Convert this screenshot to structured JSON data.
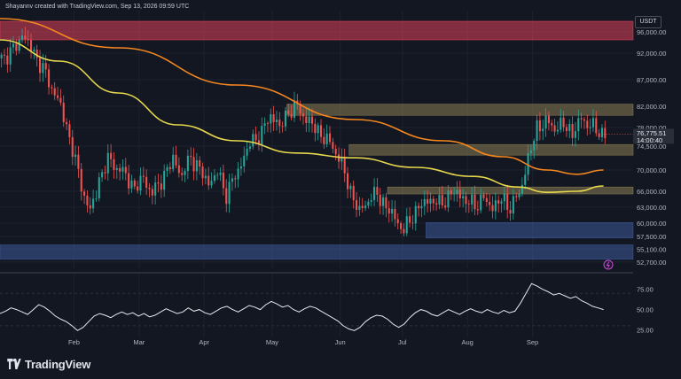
{
  "header": {
    "attribution": "Shayannv created with TradingView.com, Sep 13, 2026 09:59 UTC"
  },
  "currency_label": "USDT",
  "brand": {
    "name": "TradingView"
  },
  "colors": {
    "background": "#131722",
    "candle_up": "#26a69a",
    "candle_down": "#ef5350",
    "ma_slow": "#f5871f",
    "ma_fast": "#e6d74d",
    "rsi_line": "#e8e9ed",
    "resistance_zone": "#e0415a",
    "supply_zone": "#8a7b52",
    "demand_zone": "#3d5a99"
  },
  "price_label": {
    "price": "76,775.51",
    "countdown": "14:00:40"
  },
  "chart_data": [
    {
      "type": "candlestick",
      "title": "",
      "ylim": [
        51500,
        100000
      ],
      "yticks": [
        96000,
        92000,
        87000,
        82000,
        78000,
        74500,
        70000,
        66000,
        63000,
        60000,
        57500,
        55100,
        52700
      ],
      "ytick_labels": [
        "96,000.00",
        "92,000.00",
        "87,000.00",
        "82,000.00",
        "78,000.00",
        "74,500.00",
        "70,000.00",
        "66,000.00",
        "63,000.00",
        "60,000.00",
        "57,500.00",
        "55,100.00",
        "52,700.00"
      ],
      "x_labels": [
        "Feb",
        "Mar",
        "Apr",
        "May",
        "Jun",
        "Jul",
        "Aug",
        "Sep"
      ],
      "close_path": [
        [
          0,
          91000
        ],
        [
          4,
          92500
        ],
        [
          7,
          95500
        ],
        [
          10,
          93000
        ],
        [
          14,
          89000
        ],
        [
          17,
          85500
        ],
        [
          20,
          82000
        ],
        [
          24,
          74000
        ],
        [
          27,
          67000
        ],
        [
          30,
          62000
        ],
        [
          33,
          68000
        ],
        [
          36,
          72000
        ],
        [
          39,
          70500
        ],
        [
          42,
          69000
        ],
        [
          45,
          66500
        ],
        [
          48,
          68500
        ],
        [
          51,
          65500
        ],
        [
          55,
          69000
        ],
        [
          58,
          72000
        ],
        [
          61,
          69000
        ],
        [
          64,
          72500
        ],
        [
          67,
          70000
        ],
        [
          70,
          67500
        ],
        [
          73,
          69500
        ],
        [
          76,
          65500
        ],
        [
          80,
          70000
        ],
        [
          84,
          75000
        ],
        [
          88,
          77000
        ],
        [
          91,
          80500
        ],
        [
          94,
          78000
        ],
        [
          97,
          81000
        ],
        [
          100,
          82000
        ],
        [
          103,
          79500
        ],
        [
          106,
          78000
        ],
        [
          109,
          76000
        ],
        [
          112,
          74500
        ],
        [
          115,
          71000
        ],
        [
          118,
          66000
        ],
        [
          121,
          62000
        ],
        [
          124,
          64500
        ],
        [
          127,
          65500
        ],
        [
          130,
          63000
        ],
        [
          133,
          61000
        ],
        [
          136,
          58500
        ],
        [
          139,
          61500
        ],
        [
          142,
          63500
        ],
        [
          145,
          64500
        ],
        [
          148,
          63500
        ],
        [
          151,
          65000
        ],
        [
          154,
          66000
        ],
        [
          157,
          64000
        ],
        [
          160,
          63500
        ],
        [
          163,
          64500
        ],
        [
          166,
          63000
        ],
        [
          169,
          64500
        ],
        [
          172,
          63000
        ],
        [
          175,
          65500
        ],
        [
          178,
          72000
        ],
        [
          181,
          78000
        ],
        [
          184,
          79000
        ],
        [
          187,
          78000
        ],
        [
          190,
          78500
        ],
        [
          193,
          77000
        ],
        [
          196,
          79500
        ],
        [
          199,
          78500
        ],
        [
          202,
          77000
        ],
        [
          204,
          76800
        ]
      ],
      "moving_averages": [
        {
          "color_key": "ma_slow",
          "points": [
            [
              0,
              98500
            ],
            [
              40,
              93000
            ],
            [
              80,
              86000
            ],
            [
              120,
              79500
            ],
            [
              150,
              75500
            ],
            [
              170,
              72500
            ],
            [
              185,
              70000
            ],
            [
              195,
              69200
            ],
            [
              204,
              70000
            ]
          ]
        },
        {
          "color_key": "ma_fast",
          "points": [
            [
              0,
              94500
            ],
            [
              20,
              90500
            ],
            [
              40,
              84500
            ],
            [
              60,
              78500
            ],
            [
              80,
              75500
            ],
            [
              100,
              73200
            ],
            [
              120,
              72300
            ],
            [
              140,
              70500
            ],
            [
              160,
              68800
            ],
            [
              175,
              66800
            ],
            [
              185,
              65800
            ],
            [
              195,
              66000
            ],
            [
              204,
              67000
            ]
          ]
        }
      ],
      "zones": [
        {
          "color_key": "resistance_zone",
          "from_x": 0,
          "to_x": 214,
          "y_low": 94500,
          "y_high": 98000
        },
        {
          "color_key": "supply_zone",
          "from_x": 97,
          "to_x": 214,
          "y_low": 80300,
          "y_high": 82400
        },
        {
          "color_key": "supply_zone",
          "from_x": 118,
          "to_x": 214,
          "y_low": 72800,
          "y_high": 74800
        },
        {
          "color_key": "supply_zone",
          "from_x": 131,
          "to_x": 214,
          "y_low": 65500,
          "y_high": 66800
        },
        {
          "color_key": "demand_zone",
          "from_x": 144,
          "to_x": 214,
          "y_low": 57200,
          "y_high": 60100
        },
        {
          "color_key": "demand_zone",
          "from_x": 0,
          "to_x": 214,
          "y_low": 53200,
          "y_high": 55900
        }
      ]
    },
    {
      "type": "line",
      "title": "",
      "ylim": [
        20,
        90
      ],
      "yticks": [
        75,
        50,
        25
      ],
      "ytick_labels": [
        "75.00",
        "50.00",
        "25.00"
      ],
      "reference_lines": [
        70,
        30
      ],
      "series": [
        {
          "color_key": "rsi_line",
          "values": [
            45,
            48,
            52,
            50,
            47,
            44,
            50,
            56,
            53,
            48,
            42,
            38,
            35,
            30,
            24,
            28,
            35,
            42,
            45,
            43,
            40,
            44,
            47,
            44,
            46,
            42,
            45,
            41,
            43,
            47,
            51,
            48,
            45,
            47,
            52,
            48,
            50,
            46,
            44,
            48,
            52,
            54,
            50,
            47,
            51,
            55,
            53,
            50,
            56,
            60,
            57,
            53,
            55,
            50,
            47,
            51,
            54,
            52,
            48,
            44,
            40,
            36,
            30,
            26,
            24,
            28,
            35,
            40,
            43,
            42,
            38,
            32,
            28,
            32,
            40,
            46,
            50,
            48,
            44,
            42,
            46,
            50,
            47,
            44,
            48,
            51,
            48,
            46,
            50,
            47,
            45,
            49,
            46,
            48,
            58,
            70,
            82,
            79,
            75,
            72,
            68,
            70,
            67,
            64,
            66,
            61,
            58,
            54,
            52,
            50
          ]
        }
      ]
    }
  ]
}
